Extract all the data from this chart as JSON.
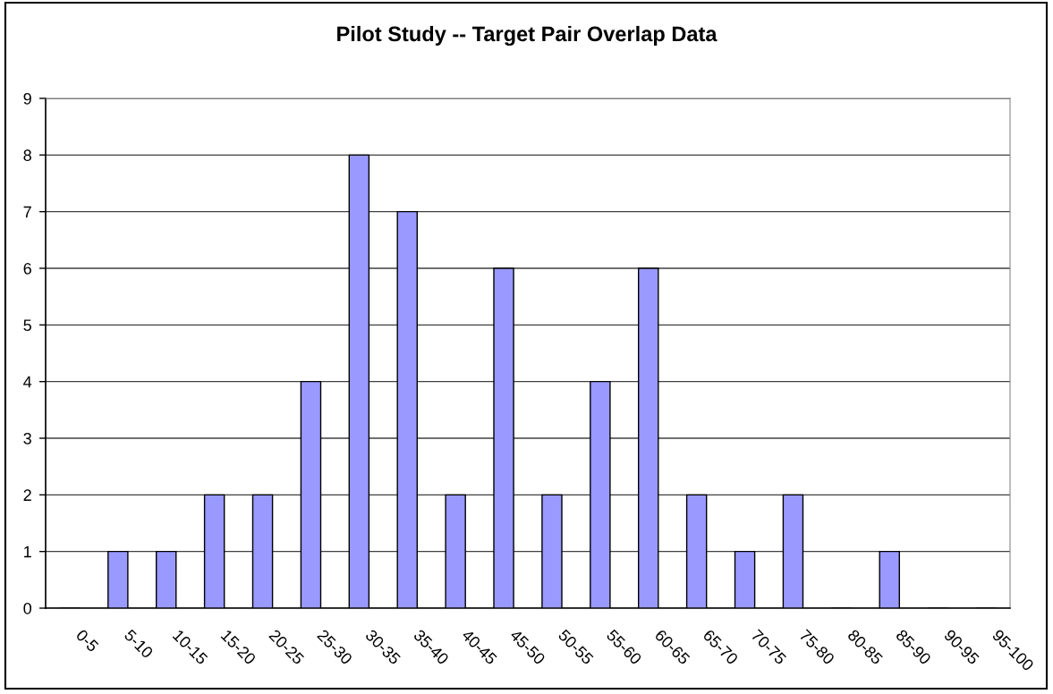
{
  "chart_data": {
    "type": "bar",
    "title": "Pilot Study -- Target Pair Overlap Data",
    "categories": [
      "0-5",
      "5-10",
      "10-15",
      "15-20",
      "20-25",
      "25-30",
      "30-35",
      "35-40",
      "40-45",
      "45-50",
      "50-55",
      "55-60",
      "60-65",
      "65-70",
      "70-75",
      "75-80",
      "80-85",
      "85-90",
      "90-95",
      "95-100"
    ],
    "values": [
      0,
      1,
      1,
      2,
      2,
      4,
      8,
      7,
      2,
      6,
      2,
      4,
      6,
      2,
      1,
      2,
      0,
      1,
      0,
      0
    ],
    "color": "#9999ff",
    "ylim": [
      0,
      9
    ],
    "yticks": [
      0,
      1,
      2,
      3,
      4,
      5,
      6,
      7,
      8,
      9
    ],
    "grid": "y"
  }
}
